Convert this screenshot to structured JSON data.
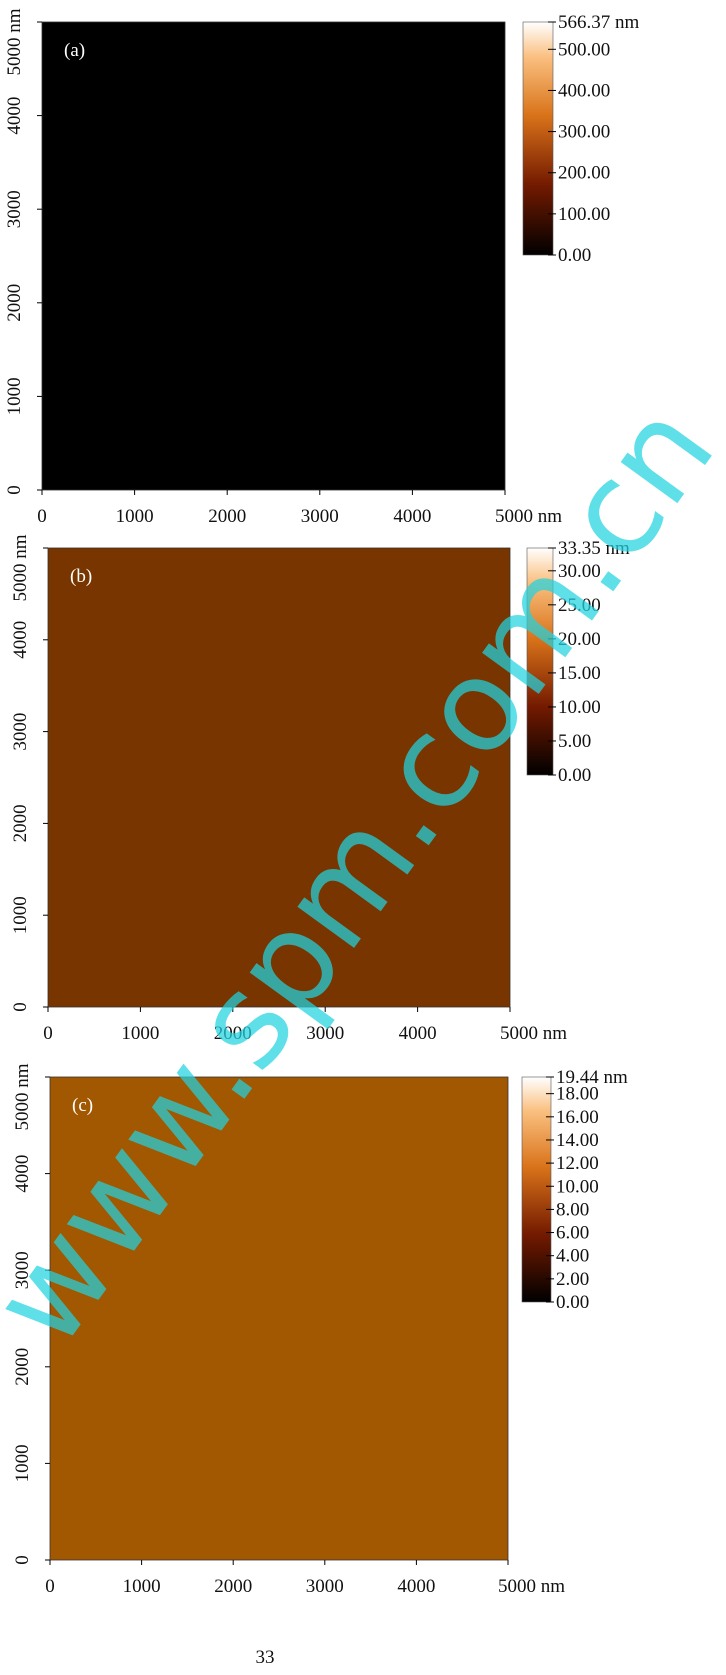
{
  "panels": [
    {
      "label": "(a)",
      "xticks": [
        "0",
        "1000",
        "2000",
        "3000",
        "4000",
        "5000 nm"
      ],
      "yticks": [
        "0",
        "1000",
        "2000",
        "3000",
        "4000",
        "5000 nm"
      ],
      "colorbar": [
        "566.37 nm",
        "500.00",
        "400.00",
        "300.00",
        "200.00",
        "100.00",
        "0.00"
      ]
    },
    {
      "label": "(b)",
      "xticks": [
        "0",
        "1000",
        "2000",
        "3000",
        "4000",
        "5000 nm"
      ],
      "yticks": [
        "0",
        "1000",
        "2000",
        "3000",
        "4000",
        "5000 nm"
      ],
      "colorbar": [
        "33.35 nm",
        "30.00",
        "25.00",
        "20.00",
        "15.00",
        "10.00",
        "5.00",
        "0.00"
      ]
    },
    {
      "label": "(c)",
      "xticks": [
        "0",
        "1000",
        "2000",
        "3000",
        "4000",
        "5000 nm"
      ],
      "yticks": [
        "0",
        "1000",
        "2000",
        "3000",
        "4000",
        "5000 nm"
      ],
      "colorbar": [
        "19.44 nm",
        "18.00",
        "16.00",
        "14.00",
        "12.00",
        "10.00",
        "8.00",
        "6.00",
        "4.00",
        "2.00",
        "0.00"
      ]
    }
  ],
  "page_number": "33",
  "watermark": "www.spm.com.cn"
}
